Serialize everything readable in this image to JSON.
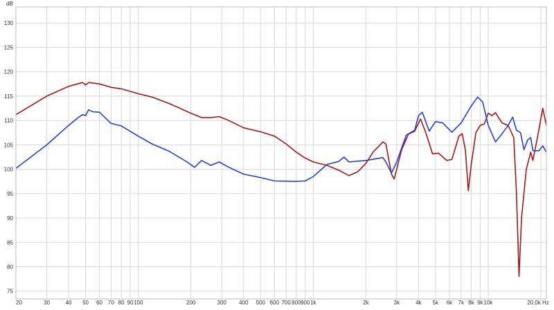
{
  "chart_data": {
    "type": "line",
    "title": "",
    "ylabel": "dB",
    "xlabel": "Hz",
    "x_scale": "log",
    "xlim": [
      20,
      21500
    ],
    "ylim": [
      73.4,
      133.3
    ],
    "grid": true,
    "legend": "none",
    "y_ticks": [
      75,
      80,
      85,
      90,
      95,
      100,
      105,
      110,
      115,
      120,
      125,
      130
    ],
    "x_ticks": [
      {
        "v": 20,
        "label": "20"
      },
      {
        "v": 30,
        "label": "30"
      },
      {
        "v": 40,
        "label": "40"
      },
      {
        "v": 50,
        "label": "50"
      },
      {
        "v": 60,
        "label": "60"
      },
      {
        "v": 70,
        "label": "70"
      },
      {
        "v": 80,
        "label": "80"
      },
      {
        "v": 90,
        "label": "90"
      },
      {
        "v": 100,
        "label": "100"
      },
      {
        "v": 200,
        "label": "200"
      },
      {
        "v": 300,
        "label": "300"
      },
      {
        "v": 400,
        "label": "400"
      },
      {
        "v": 500,
        "label": "500"
      },
      {
        "v": 600,
        "label": "600"
      },
      {
        "v": 700,
        "label": "700"
      },
      {
        "v": 800,
        "label": "800"
      },
      {
        "v": 900,
        "label": "900"
      },
      {
        "v": 1000,
        "label": "1k"
      },
      {
        "v": 2000,
        "label": "2k"
      },
      {
        "v": 3000,
        "label": "3k"
      },
      {
        "v": 4000,
        "label": "4k"
      },
      {
        "v": 5000,
        "label": "5k"
      },
      {
        "v": 6000,
        "label": "6k"
      },
      {
        "v": 7000,
        "label": "7k"
      },
      {
        "v": 8000,
        "label": "8k"
      },
      {
        "v": 9000,
        "label": "9k"
      },
      {
        "v": 10000,
        "label": "10k"
      },
      {
        "v": 20000,
        "label": "20,0k Hz"
      }
    ],
    "series": [
      {
        "color": "#a51515",
        "points": [
          [
            20,
            111.2
          ],
          [
            30,
            115
          ],
          [
            40,
            117
          ],
          [
            48,
            117.8
          ],
          [
            50,
            117.3
          ],
          [
            52,
            117.8
          ],
          [
            60,
            117.5
          ],
          [
            70,
            116.8
          ],
          [
            80,
            116.5
          ],
          [
            100,
            115.5
          ],
          [
            120,
            114.8
          ],
          [
            150,
            113.5
          ],
          [
            200,
            111.5
          ],
          [
            230,
            110.6
          ],
          [
            260,
            110.6
          ],
          [
            290,
            110.8
          ],
          [
            320,
            110.2
          ],
          [
            400,
            108.5
          ],
          [
            500,
            107.7
          ],
          [
            600,
            106.8
          ],
          [
            700,
            105.2
          ],
          [
            800,
            103.5
          ],
          [
            900,
            102.3
          ],
          [
            1000,
            101.5
          ],
          [
            1200,
            100.8
          ],
          [
            1400,
            99.8
          ],
          [
            1600,
            98.7
          ],
          [
            1800,
            99.5
          ],
          [
            2000,
            101.2
          ],
          [
            2200,
            103.5
          ],
          [
            2500,
            105.6
          ],
          [
            2600,
            105.2
          ],
          [
            2800,
            99
          ],
          [
            2900,
            98
          ],
          [
            3200,
            104
          ],
          [
            3500,
            107.2
          ],
          [
            3800,
            107.8
          ],
          [
            4100,
            110.3
          ],
          [
            4400,
            107.5
          ],
          [
            4800,
            103.2
          ],
          [
            5200,
            103.3
          ],
          [
            5800,
            101.8
          ],
          [
            6200,
            102
          ],
          [
            6800,
            106.8
          ],
          [
            7100,
            107.3
          ],
          [
            7400,
            104
          ],
          [
            7700,
            95.6
          ],
          [
            8000,
            101
          ],
          [
            8500,
            107.5
          ],
          [
            9000,
            109
          ],
          [
            9500,
            109.3
          ],
          [
            10000,
            111.5
          ],
          [
            10500,
            111
          ],
          [
            11000,
            111.6
          ],
          [
            12000,
            109.5
          ],
          [
            13000,
            109
          ],
          [
            14000,
            106.5
          ],
          [
            14500,
            95
          ],
          [
            15000,
            78
          ],
          [
            15500,
            90
          ],
          [
            16500,
            100
          ],
          [
            17500,
            103.5
          ],
          [
            18000,
            101.8
          ],
          [
            19000,
            106
          ],
          [
            20500,
            112.5
          ],
          [
            21500,
            109
          ]
        ]
      },
      {
        "color": "#1f3fdc",
        "points": [
          [
            20,
            100.2
          ],
          [
            30,
            105
          ],
          [
            40,
            109
          ],
          [
            45,
            110.5
          ],
          [
            48,
            111.2
          ],
          [
            50,
            111
          ],
          [
            52,
            112.2
          ],
          [
            55,
            111.8
          ],
          [
            60,
            111.7
          ],
          [
            70,
            109.4
          ],
          [
            80,
            108.9
          ],
          [
            100,
            106.8
          ],
          [
            120,
            105.2
          ],
          [
            150,
            103.7
          ],
          [
            190,
            101.5
          ],
          [
            210,
            100.4
          ],
          [
            230,
            101.8
          ],
          [
            260,
            100.8
          ],
          [
            290,
            101.5
          ],
          [
            330,
            100.4
          ],
          [
            400,
            99
          ],
          [
            500,
            98.3
          ],
          [
            600,
            97.6
          ],
          [
            800,
            97.5
          ],
          [
            900,
            97.6
          ],
          [
            1000,
            98.5
          ],
          [
            1200,
            101
          ],
          [
            1400,
            101.6
          ],
          [
            1500,
            102.5
          ],
          [
            1600,
            101.5
          ],
          [
            2000,
            101.8
          ],
          [
            2500,
            102.4
          ],
          [
            2600,
            101.5
          ],
          [
            2800,
            99.2
          ],
          [
            3000,
            101.5
          ],
          [
            3400,
            107
          ],
          [
            3800,
            108
          ],
          [
            4000,
            111
          ],
          [
            4200,
            111.7
          ],
          [
            4600,
            107.8
          ],
          [
            5000,
            109.8
          ],
          [
            5500,
            109.5
          ],
          [
            6200,
            107.6
          ],
          [
            7000,
            109.5
          ],
          [
            8000,
            113
          ],
          [
            8700,
            114.8
          ],
          [
            9300,
            113.8
          ],
          [
            10000,
            109
          ],
          [
            11000,
            105.6
          ],
          [
            12000,
            107.3
          ],
          [
            13000,
            109
          ],
          [
            13800,
            110.7
          ],
          [
            14500,
            108
          ],
          [
            15300,
            107.5
          ],
          [
            16000,
            104
          ],
          [
            16800,
            106
          ],
          [
            17500,
            106.5
          ],
          [
            18000,
            103.8
          ],
          [
            19500,
            103.8
          ],
          [
            20500,
            104.8
          ],
          [
            21500,
            103.5
          ]
        ]
      }
    ]
  }
}
